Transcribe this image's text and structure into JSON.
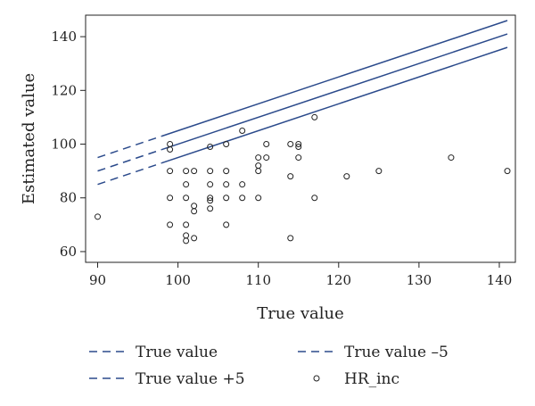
{
  "chart_data": {
    "type": "scatter",
    "xlabel": "True value",
    "ylabel": "Estimated value",
    "xlim": [
      88.5,
      142
    ],
    "ylim": [
      56,
      148
    ],
    "xticks": [
      90,
      100,
      110,
      120,
      130,
      140
    ],
    "yticks": [
      60,
      80,
      100,
      120,
      140
    ],
    "grid": false,
    "legend_position": "bottom",
    "reference_lines": [
      {
        "name": "True value",
        "offset": 0,
        "x_range": [
          90,
          141
        ],
        "dashed_until_x": 98
      },
      {
        "name": "True value –5",
        "offset": -5,
        "x_range": [
          90,
          141
        ],
        "dashed_until_x": 98
      },
      {
        "name": "True value +5",
        "offset": 5,
        "x_range": [
          90,
          141
        ],
        "dashed_until_x": 98
      }
    ],
    "series": [
      {
        "name": "HR_inc",
        "marker": "circle-open",
        "points": [
          [
            90,
            73
          ],
          [
            99,
            100
          ],
          [
            99,
            98
          ],
          [
            99,
            90
          ],
          [
            99,
            80
          ],
          [
            99,
            70
          ],
          [
            101,
            90
          ],
          [
            101,
            85
          ],
          [
            101,
            80
          ],
          [
            101,
            70
          ],
          [
            101,
            66
          ],
          [
            101,
            64
          ],
          [
            102,
            90
          ],
          [
            102,
            77
          ],
          [
            102,
            75
          ],
          [
            102,
            65
          ],
          [
            104,
            99
          ],
          [
            104,
            90
          ],
          [
            104,
            85
          ],
          [
            104,
            80
          ],
          [
            104,
            79
          ],
          [
            104,
            76
          ],
          [
            106,
            100
          ],
          [
            106,
            90
          ],
          [
            106,
            85
          ],
          [
            106,
            80
          ],
          [
            106,
            70
          ],
          [
            108,
            105
          ],
          [
            108,
            85
          ],
          [
            108,
            80
          ],
          [
            110,
            95
          ],
          [
            110,
            92
          ],
          [
            110,
            90
          ],
          [
            110,
            80
          ],
          [
            111,
            100
          ],
          [
            111,
            95
          ],
          [
            114,
            100
          ],
          [
            114,
            88
          ],
          [
            114,
            65
          ],
          [
            115,
            100
          ],
          [
            115,
            99
          ],
          [
            115,
            95
          ],
          [
            117,
            110
          ],
          [
            117,
            80
          ],
          [
            121,
            88
          ],
          [
            125,
            90
          ],
          [
            134,
            95
          ],
          [
            141,
            90
          ]
        ]
      }
    ],
    "legend": [
      {
        "label": "True value",
        "symbol": "dashed-line"
      },
      {
        "label": "True value –5",
        "symbol": "dashed-line"
      },
      {
        "label": "True value +5",
        "symbol": "dashed-line"
      },
      {
        "label": "HR_inc",
        "symbol": "open-circle"
      }
    ],
    "colors": {
      "line": "#2b4a8b",
      "marker": "#222222",
      "axis": "#222222"
    }
  }
}
